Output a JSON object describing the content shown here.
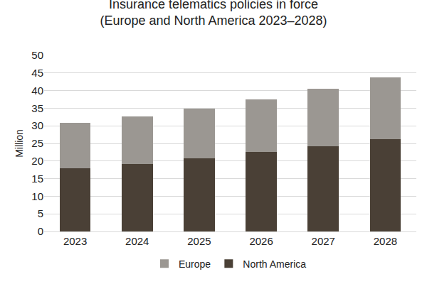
{
  "chart_data": {
    "type": "bar",
    "title": "Insurance telematics policies in force\n(Europe and North America 2023–2028)",
    "y_label": "Million",
    "categories": [
      "2023",
      "2024",
      "2025",
      "2026",
      "2027",
      "2028"
    ],
    "series": [
      {
        "name": "North America",
        "color": "#4a4036",
        "values": [
          17.9,
          19.2,
          20.7,
          22.6,
          24.2,
          26.2
        ]
      },
      {
        "name": "Europe",
        "color": "#9b9792",
        "values": [
          12.9,
          13.5,
          14.2,
          15.0,
          16.3,
          17.6
        ]
      }
    ],
    "stacked": true,
    "ylim": [
      0,
      50
    ],
    "yticks": [
      0,
      5,
      10,
      15,
      20,
      25,
      30,
      35,
      40,
      45,
      50
    ],
    "grid": true,
    "legend": "bottom"
  }
}
